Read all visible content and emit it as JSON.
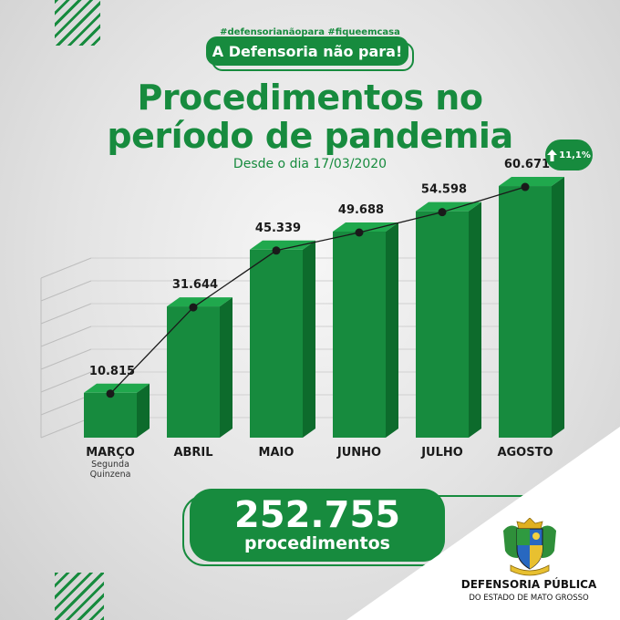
{
  "hashtags": "#defensorianãopara #fiqueemcasa",
  "badge": "A Defensoria não para!",
  "title_line1": "Procedimentos no",
  "title_line2": "período de pandemia",
  "subtitle": "Desde o dia 17/03/2020",
  "growth": {
    "label": "11,1%",
    "icon": "arrow-up-icon"
  },
  "total": {
    "value": "252.755",
    "label": "procedimentos"
  },
  "organization": {
    "name": "DEFENSORIA PÚBLICA",
    "subtitle": "DO ESTADO DE MATO GROSSO"
  },
  "colors": {
    "green": "#178b3e",
    "green_light": "#20a84d",
    "green_dark": "#0d6b2c",
    "line": "#1a1a1a"
  },
  "chart_data": {
    "type": "bar",
    "categories": [
      "MARÇO",
      "ABRIL",
      "MAIO",
      "JUNHO",
      "JULHO",
      "AGOSTO"
    ],
    "category_sublabels": [
      "Segunda Quinzena",
      "",
      "",
      "",
      "",
      ""
    ],
    "values": [
      10815,
      31644,
      45339,
      49688,
      54598,
      60671
    ],
    "value_labels": [
      "10.815",
      "31.644",
      "45.339",
      "49.688",
      "54.598",
      "60.671"
    ],
    "line_overlay": true,
    "grid": true,
    "style": "3d",
    "ylim": [
      0,
      62000
    ]
  }
}
